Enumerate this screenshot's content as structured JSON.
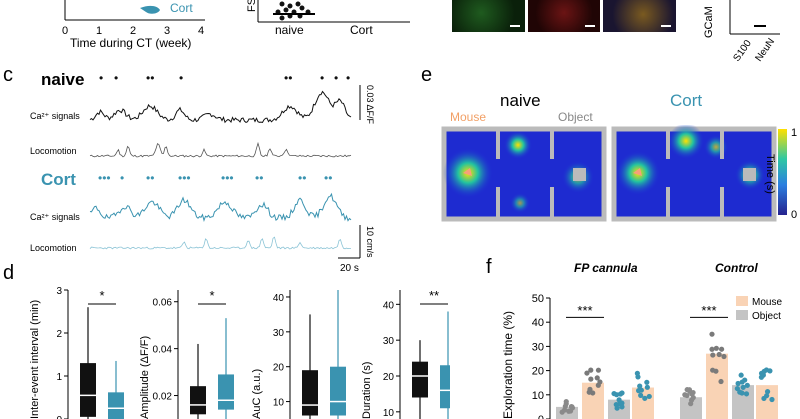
{
  "colors": {
    "naive": "#111111",
    "cort": "#3a93b0",
    "locomotion_naive": "#555555",
    "locomotion_cort": "#8cc4d6",
    "mouse": "#f7c9a5",
    "object": "#a9a9a9",
    "bar_mouse": "#f9d3b5",
    "bar_object": "#c4c4c4"
  },
  "panel_labels": {
    "c": "c",
    "d": "d",
    "e": "e",
    "f": "f"
  },
  "top_left": {
    "legend_cort": "Cort",
    "xlabel": "Time during CT (week)",
    "ticks": [
      "0",
      "1",
      "2",
      "3",
      "4"
    ],
    "ylabel_fragment": "FS"
  },
  "top_mid": {
    "categories": [
      "naive",
      "Cort"
    ]
  },
  "top_right": {
    "ylabel_fragment": "GCaM",
    "ticks": [
      "S100",
      "NeuN"
    ]
  },
  "panel_c": {
    "naive_label": "naive",
    "cort_label": "Cort",
    "ca_label": "Ca²⁺ signals",
    "loco_label": "Locomotion",
    "scale_df": "0.03 ΔF/F",
    "scale_df_sub": "0",
    "scale_speed": "10 cm/s",
    "scale_time": "20 s",
    "naive_event_marks": [
      "•",
      "•",
      "••",
      "•",
      "••",
      "•",
      "•",
      "•"
    ],
    "cort_event_marks": [
      "•••",
      "•",
      "••",
      "•••",
      "•••",
      "••",
      "••",
      "••"
    ]
  },
  "panel_d": {
    "plots": [
      {
        "ylabel": "Inter-event interval (min)",
        "ticks": [
          "0",
          "1",
          "2",
          "3"
        ],
        "sig": "*",
        "naive": {
          "q1": 0.05,
          "median": 0.55,
          "q3": 1.3,
          "wlo": 0,
          "whi": 2.6
        },
        "cort": {
          "q1": 0.0,
          "median": 0.25,
          "q3": 0.62,
          "wlo": 0,
          "whi": 1.35
        },
        "ymin": 0,
        "ymax": 3
      },
      {
        "ylabel": "Amplitude (ΔF/F)",
        "ticks": [
          "0.02",
          "0.04",
          "0.06"
        ],
        "sig": "*",
        "naive": {
          "q1": 0.012,
          "median": 0.016,
          "q3": 0.024,
          "wlo": 0.008,
          "whi": 0.042
        },
        "cort": {
          "q1": 0.014,
          "median": 0.018,
          "q3": 0.029,
          "wlo": 0.009,
          "whi": 0.053
        },
        "ymin": 0.01,
        "ymax": 0.065
      },
      {
        "ylabel": "AuC (a.u.)",
        "ticks": [
          "10",
          "20",
          "30",
          "40"
        ],
        "sig": "",
        "naive": {
          "q1": 6,
          "median": 9,
          "q3": 19,
          "wlo": 2,
          "whi": 35
        },
        "cort": {
          "q1": 6,
          "median": 10,
          "q3": 20,
          "wlo": 2,
          "whi": 42
        },
        "ymin": 5,
        "ymax": 42
      },
      {
        "ylabel": "Duration (s)",
        "ticks": [
          "10",
          "20",
          "30",
          "40"
        ],
        "sig": "**",
        "naive": {
          "q1": 14,
          "median": 20,
          "q3": 24,
          "wlo": 8,
          "whi": 30
        },
        "cort": {
          "q1": 11,
          "median": 16,
          "q3": 23,
          "wlo": 5,
          "whi": 38
        },
        "ymin": 8,
        "ymax": 44
      }
    ]
  },
  "panel_e": {
    "naive_title": "naive",
    "cort_title": "Cort",
    "mouse_label": "Mouse",
    "object_label": "Object",
    "colorbar_title": "Time (s)",
    "colorbar_ticks": [
      "1",
      "0"
    ]
  },
  "panel_f": {
    "title_left": "FP cannula",
    "title_right": "Control",
    "ylabel": "Exploration time (%)",
    "ticks": [
      "0",
      "10",
      "20",
      "30",
      "40",
      "50"
    ],
    "sig_left": "***",
    "sig_right": "***",
    "legend": [
      "Mouse",
      "Object"
    ],
    "chart_data": {
      "type": "bar",
      "title": "Exploration time (%)",
      "ylabel": "Exploration time (%)",
      "ylim": [
        0,
        50
      ],
      "groups": [
        "FP cannula",
        "Control"
      ],
      "categories": [
        "naive Object",
        "naive Mouse",
        "Cort Object",
        "Cort Mouse",
        "naive Object",
        "naive Mouse",
        "Cort Object",
        "Cort Mouse"
      ],
      "series": [
        {
          "name": "Exploration time",
          "values": [
            5,
            15,
            8,
            13,
            9,
            27,
            14,
            14
          ]
        }
      ]
    }
  }
}
